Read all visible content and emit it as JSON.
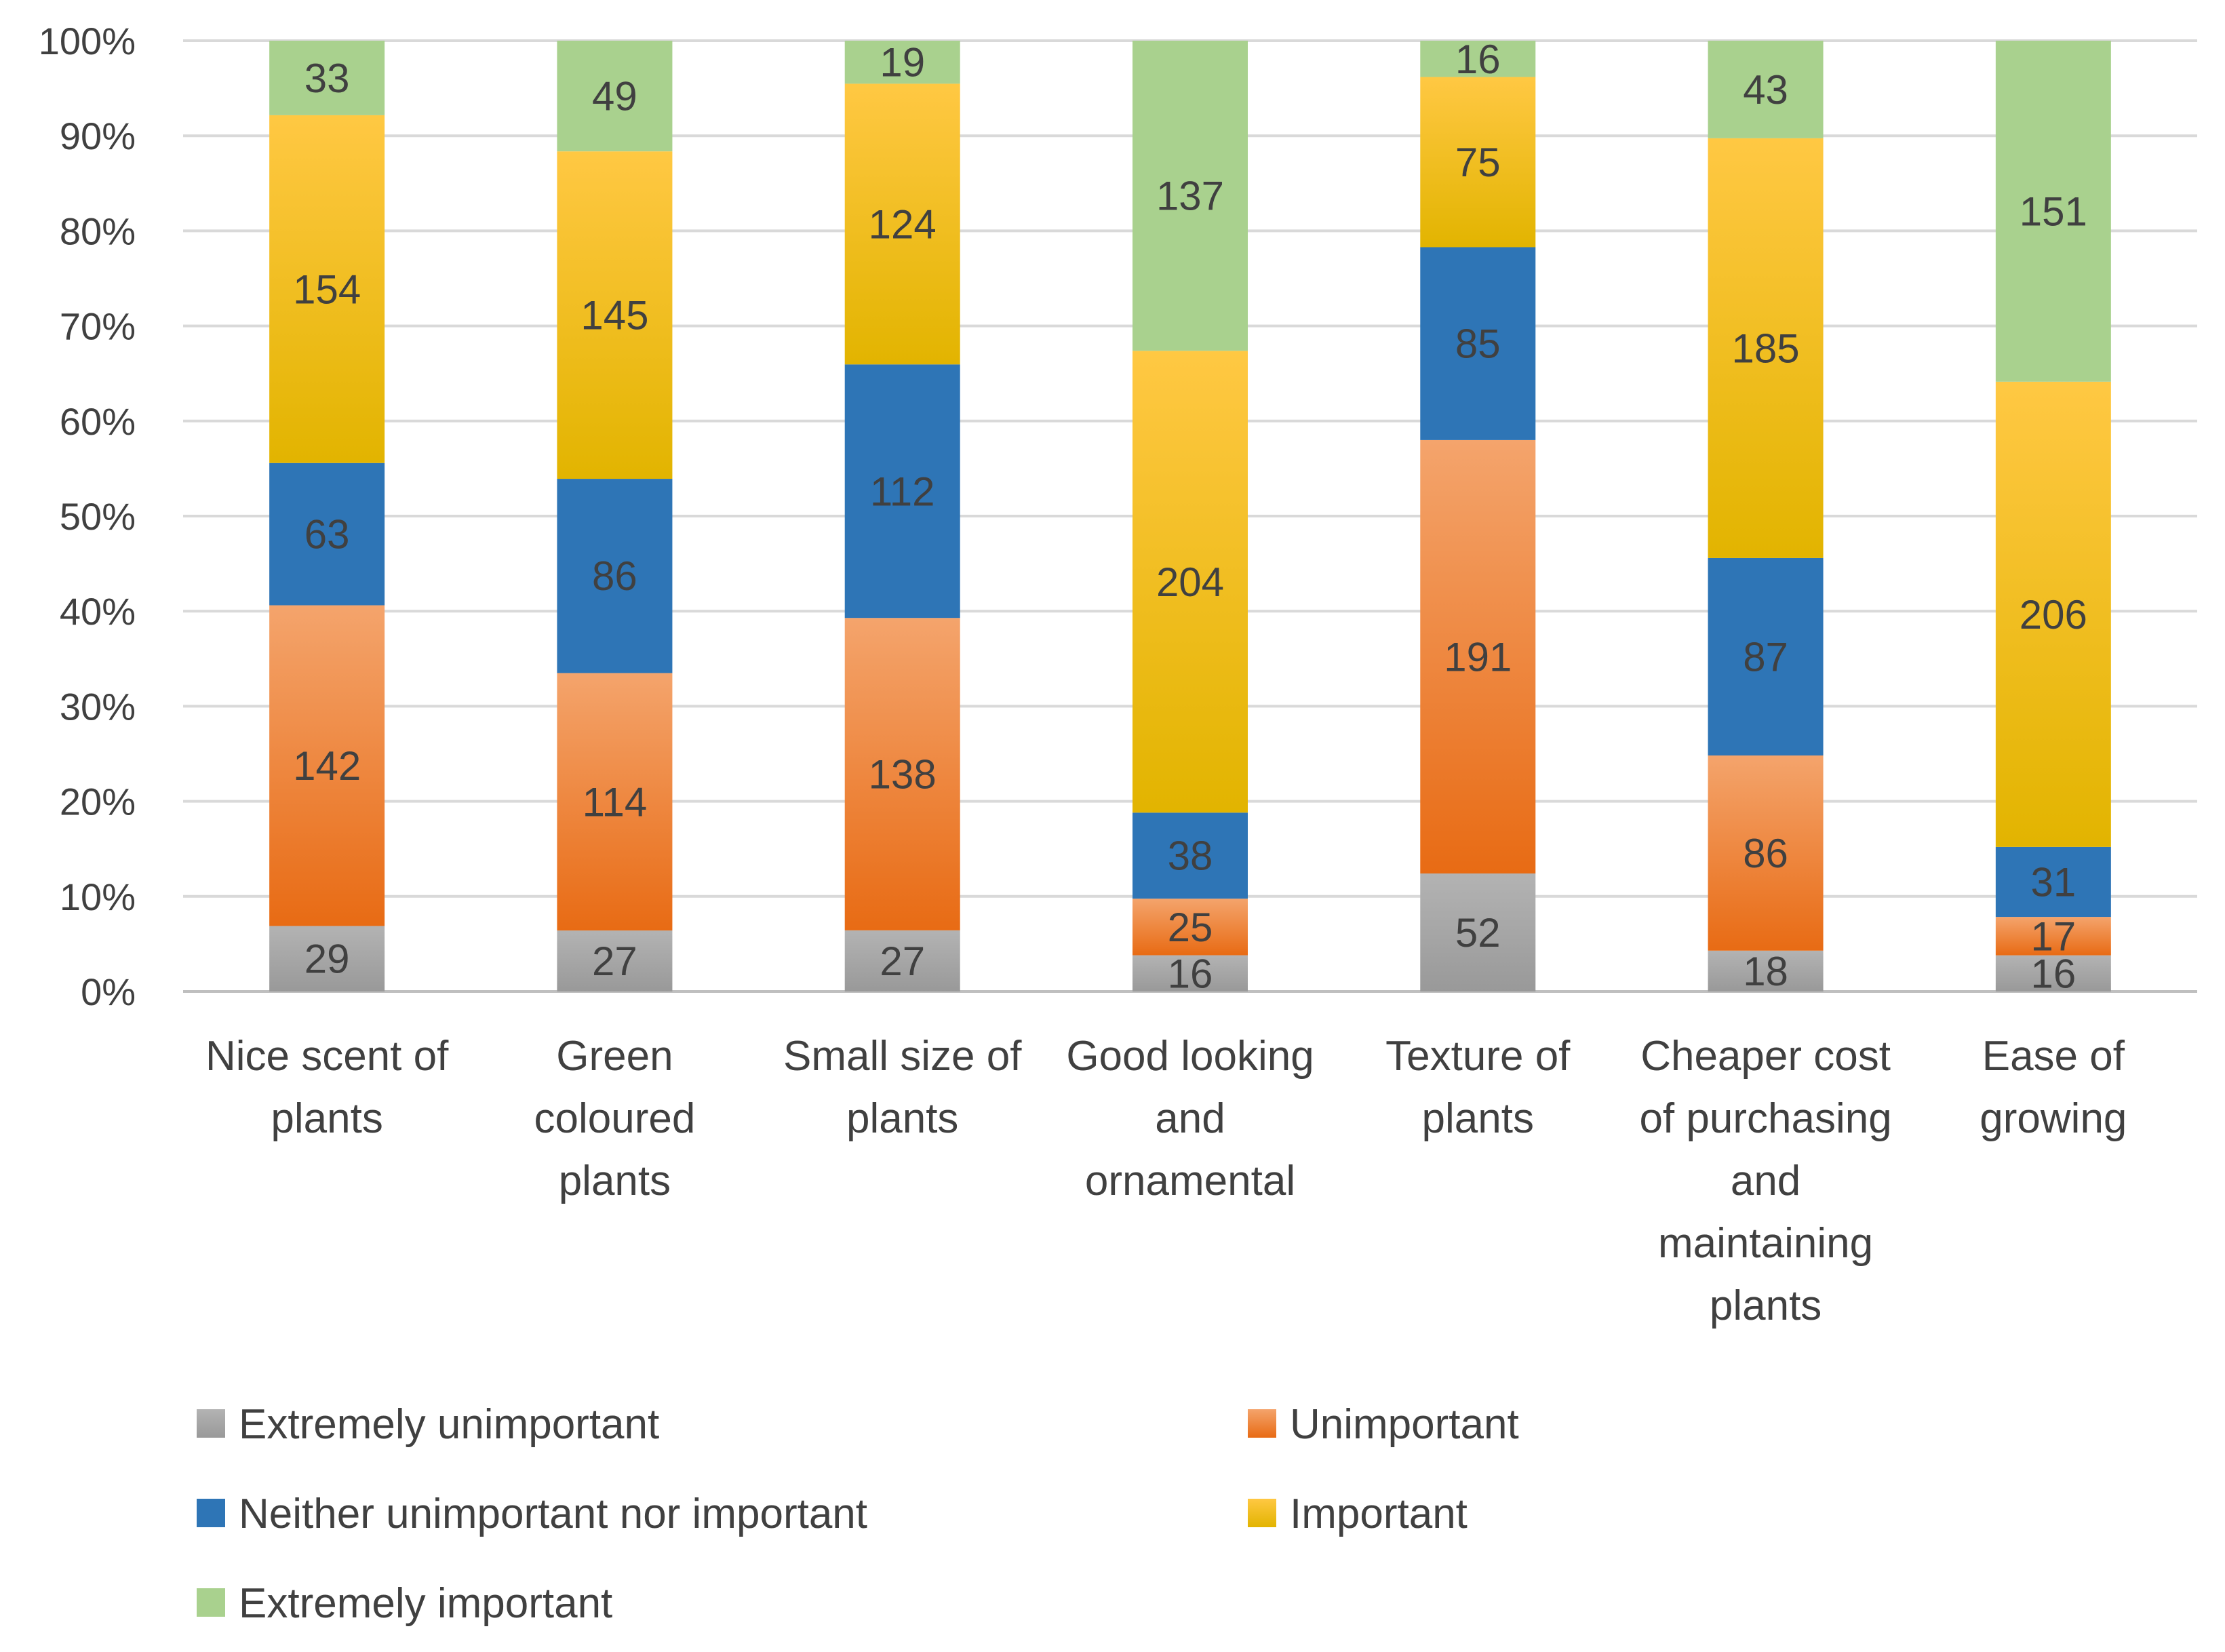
{
  "chart_data": {
    "type": "bar",
    "stacked": true,
    "normalized": true,
    "title": "",
    "xlabel": "",
    "ylabel": "",
    "ylim": [
      0,
      100
    ],
    "yticks": [
      "0%",
      "10%",
      "20%",
      "30%",
      "40%",
      "50%",
      "60%",
      "70%",
      "80%",
      "90%",
      "100%"
    ],
    "grid": true,
    "legend_position": "bottom",
    "categories": [
      [
        "Nice scent of",
        "plants"
      ],
      [
        "Green",
        "coloured",
        "plants"
      ],
      [
        "Small size of",
        "plants"
      ],
      [
        "Good looking",
        "and",
        "ornamental"
      ],
      [
        "Texture of",
        "plants"
      ],
      [
        "Cheaper cost",
        "of purchasing",
        "and",
        "maintaining",
        "plants"
      ],
      [
        "Ease of",
        "growing"
      ]
    ],
    "series": [
      {
        "name": "Extremely unimportant",
        "color": "#a5a5a5",
        "colorLight": "#b3b3b3",
        "colorDark": "#999999",
        "values": [
          29,
          27,
          27,
          16,
          52,
          18,
          16
        ]
      },
      {
        "name": "Unimportant",
        "color": "#ed7d31",
        "colorLight": "#f4a46c",
        "colorDark": "#e86b14",
        "values": [
          142,
          114,
          138,
          25,
          191,
          86,
          17
        ]
      },
      {
        "name": "Neither unimportant nor important",
        "color": "#2e75b6",
        "colorLight": "#2e75b6",
        "colorDark": "#2e75b6",
        "values": [
          63,
          86,
          112,
          38,
          85,
          87,
          31
        ]
      },
      {
        "name": "Important",
        "color": "#ffc000",
        "colorLight": "#ffc843",
        "colorDark": "#e2b400",
        "values": [
          154,
          145,
          124,
          204,
          75,
          185,
          206
        ]
      },
      {
        "name": "Extremely important",
        "color": "#a9d18e",
        "colorLight": "#a9d18e",
        "colorDark": "#a9d18e",
        "values": [
          33,
          49,
          19,
          137,
          16,
          43,
          151
        ]
      }
    ]
  }
}
